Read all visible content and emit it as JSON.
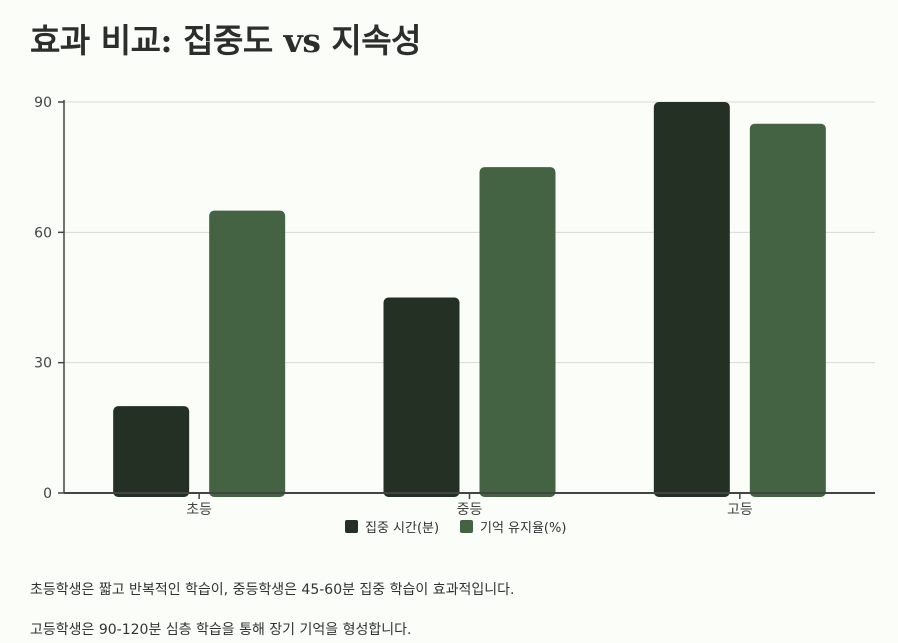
{
  "chart_data": {
    "type": "bar",
    "title": "효과 비교: 집중도 vs 지속성",
    "categories": [
      "초등",
      "중등",
      "고등"
    ],
    "series": [
      {
        "name": "집중 시간(분)",
        "values": [
          20,
          45,
          90
        ],
        "color": "#233023"
      },
      {
        "name": "기억 유지율(%)",
        "values": [
          65,
          75,
          85
        ],
        "color": "#436343"
      }
    ],
    "yticks": [
      "0",
      "30",
      "60",
      "90"
    ],
    "ylim": [
      0,
      90
    ],
    "grid": true,
    "legend": "bottom-center"
  },
  "notes": [
    "초등학생은 짧고 반복적인 학습이, 중등학생은 45-60분 집중 학습이 효과적입니다.",
    "고등학생은 90-120분 심층 학습을 통해 장기 기억을 형성합니다."
  ]
}
